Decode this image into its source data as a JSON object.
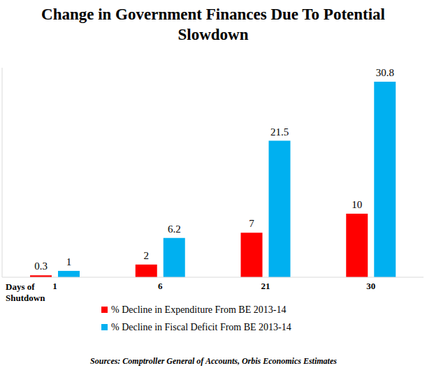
{
  "chart_data": {
    "type": "bar",
    "title": "Change in Government Finances Due To Potential Slowdown",
    "x_label": "Days of Shutdown",
    "categories": [
      "1",
      "6",
      "21",
      "30"
    ],
    "series": [
      {
        "name": "% Decline in Expenditure From BE 2013-14",
        "color": "#ff0000",
        "values": [
          0.3,
          2,
          7,
          10
        ]
      },
      {
        "name": "% Decline in Fiscal Deficit From BE 2013-14",
        "color": "#00b0f0",
        "values": [
          1,
          6.2,
          21.5,
          30.8
        ]
      }
    ],
    "ylim": [
      0,
      33
    ],
    "data_labels": true,
    "tick_labels": "x",
    "grid": false,
    "legend": "bottom",
    "source": "Sources: Comptroller General of Accounts, Orbis Economics Estimates"
  }
}
